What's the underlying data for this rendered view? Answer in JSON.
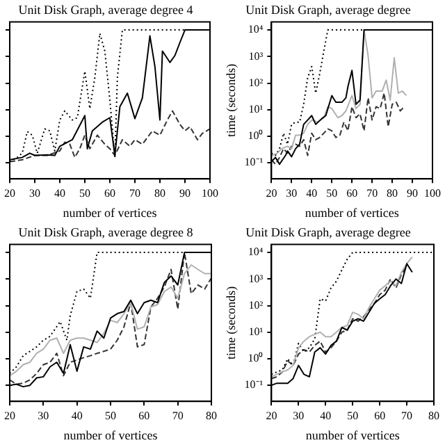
{
  "chart_data": [
    {
      "type": "line",
      "title": "Unit Disk Graph, average degree 4",
      "xlabel": "number of vertices",
      "xlim": [
        20,
        100
      ],
      "xticks": [
        20,
        30,
        40,
        50,
        60,
        70,
        80,
        90,
        100
      ],
      "ylim": [
        0.025,
        20000
      ],
      "yticks": [
        {
          "value": 0.1,
          "label": null
        },
        {
          "value": 1,
          "label": null
        },
        {
          "value": 10,
          "label": null
        },
        {
          "value": 100,
          "label": null
        },
        {
          "value": 1000,
          "label": null
        },
        {
          "value": 10000,
          "label": null
        }
      ],
      "log": "y",
      "tick_labels": "x",
      "grid": false,
      "legend": false,
      "marker": "none",
      "series": [
        {
          "color": "#000000",
          "line_style": "solid",
          "x": [
            20,
            25,
            28,
            30,
            35,
            38,
            40,
            45,
            50,
            51,
            53,
            57,
            60,
            62,
            64,
            67,
            70,
            73,
            76,
            78,
            80,
            81,
            84,
            86,
            88,
            90,
            100
          ],
          "values": [
            0.13,
            0.16,
            0.23,
            0.19,
            0.2,
            0.19,
            0.42,
            0.74,
            6,
            0.34,
            1.6,
            3.4,
            5,
            0.19,
            13,
            42,
            4.6,
            28,
            6000,
            420,
            4.1,
            1600,
            600,
            1100,
            3400,
            10000,
            10000
          ]
        },
        {
          "color": "#000000",
          "line_style": "dotted",
          "x": [
            20,
            23,
            25,
            27,
            29,
            31,
            34,
            36,
            38,
            40,
            42,
            45,
            47,
            50,
            52,
            54,
            56,
            58,
            60,
            62,
            63,
            65,
            100
          ],
          "values": [
            0.11,
            0.16,
            0.23,
            1.5,
            1.1,
            0.23,
            1.9,
            1.6,
            0.28,
            4.1,
            9,
            4.1,
            5,
            280,
            11,
            160,
            7400,
            1600,
            23,
            0.16,
            160,
            10000,
            10000
          ]
        },
        {
          "color": "#333333",
          "line_style": "dashed",
          "x": [
            20,
            25,
            30,
            35,
            40,
            42,
            44,
            46,
            48,
            50,
            52,
            55,
            58,
            60,
            62,
            65,
            68,
            70,
            73,
            75,
            77,
            80,
            83,
            85,
            88,
            90,
            92,
            95,
            97,
            100
          ],
          "values": [
            0.11,
            0.13,
            0.19,
            0.19,
            0.28,
            0.6,
            0.5,
            0.16,
            0.34,
            1.1,
            0.34,
            1.1,
            0.5,
            0.34,
            0.19,
            0.74,
            0.42,
            0.74,
            0.5,
            0.9,
            1.6,
            1.1,
            4.1,
            9,
            2.8,
            1.6,
            2.3,
            0.74,
            1.3,
            1.9
          ]
        }
      ]
    },
    {
      "type": "line",
      "title": "Unit Disk Graph, average degree",
      "xlabel": "number of vertices",
      "ylabel": "time (seconds)",
      "xlim": [
        20,
        100
      ],
      "xticks": [
        20,
        30,
        40,
        50,
        60,
        70,
        80,
        90,
        100
      ],
      "ylim": [
        0.025,
        20000
      ],
      "yticks": [
        {
          "value": 0.1,
          "label": "10⁻¹"
        },
        {
          "value": 1,
          "label": "10⁰"
        },
        {
          "value": 10,
          "label": "10¹"
        },
        {
          "value": 100,
          "label": "10²"
        },
        {
          "value": 1000,
          "label": "10³"
        },
        {
          "value": 10000,
          "label": "10⁴"
        }
      ],
      "log": "y",
      "grid": false,
      "legend": false,
      "marker": "none",
      "series": [
        {
          "color": "#000000",
          "line_style": "solid",
          "x": [
            20,
            22,
            24,
            27,
            28,
            30,
            32,
            34,
            36,
            38,
            40,
            42,
            45,
            47,
            50,
            52,
            55,
            57,
            58,
            60,
            62,
            64,
            66,
            100
          ],
          "values": [
            0.11,
            0.16,
            0.089,
            0.19,
            0.28,
            0.17,
            0.34,
            0.5,
            2.8,
            4.1,
            6,
            2.8,
            4.6,
            6,
            34,
            19,
            19,
            28,
            74,
            300,
            16,
            23,
            10000,
            10000
          ]
        },
        {
          "color": "#b0b0b0",
          "line_style": "solid",
          "x": [
            20,
            23,
            25,
            28,
            30,
            32,
            34,
            36,
            38,
            40,
            43,
            46,
            48,
            50,
            53,
            55,
            57,
            60,
            62,
            64,
            66,
            68,
            70,
            72,
            75,
            77,
            79,
            81,
            83,
            85,
            87
          ],
          "values": [
            0.19,
            0.23,
            0.34,
            0.42,
            0.34,
            1.1,
            1.1,
            1.3,
            2.8,
            4.1,
            3.4,
            5,
            13,
            11,
            5,
            6,
            9,
            34,
            11,
            16,
            10000,
            1100,
            28,
            50,
            50,
            130,
            23,
            900,
            42,
            50,
            34
          ]
        },
        {
          "color": "#000000",
          "line_style": "dotted",
          "x": [
            20,
            22,
            24,
            26,
            28,
            30,
            32,
            34,
            36,
            38,
            40,
            42,
            44,
            46,
            48,
            100
          ],
          "values": [
            0.23,
            0.19,
            0.34,
            1.3,
            0.5,
            2.8,
            3.4,
            3.4,
            16,
            160,
            420,
            42,
            230,
            1600,
            10000,
            10000
          ]
        },
        {
          "color": "#333333",
          "line_style": "dashed",
          "x": [
            20,
            22,
            24,
            26,
            28,
            30,
            32,
            34,
            36,
            38,
            40,
            42,
            44,
            46,
            48,
            50,
            52,
            54,
            56,
            58,
            60,
            62,
            64,
            66,
            68,
            70,
            72,
            74,
            76,
            78,
            80,
            82,
            84,
            86
          ],
          "values": [
            0.13,
            0.089,
            0.16,
            0.34,
            0.23,
            0.42,
            0.5,
            0.42,
            0.74,
            0.19,
            1.3,
            0.74,
            0.9,
            1.3,
            1.9,
            1.6,
            0.9,
            1.1,
            3.4,
            1.6,
            13,
            5,
            7,
            1.6,
            28,
            4.1,
            13,
            11,
            42,
            2.3,
            16,
            19,
            9,
            13
          ]
        }
      ]
    },
    {
      "type": "line",
      "title": "Unit Disk Graph, average degree 8",
      "xlabel": "number of vertices",
      "xlim": [
        20,
        80
      ],
      "xticks": [
        20,
        30,
        40,
        50,
        60,
        70,
        80
      ],
      "ylim": [
        0.025,
        20000
      ],
      "yticks": [
        {
          "value": 0.1,
          "label": null
        },
        {
          "value": 1,
          "label": null
        },
        {
          "value": 10,
          "label": null
        },
        {
          "value": 100,
          "label": null
        },
        {
          "value": 1000,
          "label": null
        },
        {
          "value": 10000,
          "label": null
        }
      ],
      "log": "y",
      "tick_labels": "x",
      "grid": false,
      "legend": false,
      "marker": "none",
      "series": [
        {
          "color": "#000000",
          "line_style": "solid",
          "x": [
            20,
            22,
            24,
            26,
            28,
            30,
            32,
            34,
            36,
            38,
            40,
            42,
            44,
            46,
            48,
            50,
            52,
            54,
            56,
            58,
            60,
            62,
            64,
            66,
            68,
            70,
            72,
            80
          ],
          "values": [
            0.1,
            0.11,
            0.089,
            0.1,
            0.19,
            0.21,
            0.5,
            0.74,
            0.28,
            3.4,
            0.34,
            2.8,
            2.3,
            11,
            6,
            34,
            50,
            60,
            160,
            50,
            130,
            160,
            130,
            740,
            1300,
            600,
            10000,
            10000
          ]
        },
        {
          "color": "#b0b0b0",
          "line_style": "solid",
          "x": [
            20,
            22,
            24,
            26,
            28,
            30,
            32,
            34,
            36,
            38,
            40,
            42,
            44,
            46,
            48,
            50,
            52,
            54,
            56,
            58,
            60,
            62,
            64,
            66,
            68,
            70,
            72,
            74,
            76,
            78,
            80
          ],
          "values": [
            0.23,
            0.34,
            0.6,
            0.74,
            1.6,
            2.3,
            5,
            6,
            1.6,
            5,
            6,
            6,
            5,
            4.1,
            9,
            28,
            23,
            50,
            130,
            13,
            16,
            89,
            110,
            340,
            500,
            190,
            1600,
            3400,
            2300,
            1600,
            1600
          ]
        },
        {
          "color": "#000000",
          "line_style": "dotted",
          "x": [
            20,
            22,
            24,
            26,
            28,
            30,
            32,
            35,
            37,
            38,
            40,
            42,
            44,
            46,
            80
          ],
          "values": [
            0.28,
            0.5,
            1.3,
            1.9,
            2.8,
            5,
            7,
            25,
            5,
            42,
            340,
            420,
            190,
            10000,
            10000
          ]
        },
        {
          "color": "#333333",
          "line_style": "dashed",
          "x": [
            20,
            22,
            24,
            26,
            28,
            30,
            32,
            34,
            36,
            38,
            40,
            42,
            44,
            46,
            48,
            50,
            52,
            54,
            56,
            58,
            60,
            62,
            64,
            66,
            68,
            70,
            72,
            74,
            76,
            78,
            80
          ],
          "values": [
            0.16,
            0.11,
            0.12,
            0.16,
            0.28,
            0.6,
            0.74,
            1.6,
            0.23,
            0.74,
            0.9,
            1.1,
            1.3,
            1.6,
            1.9,
            2.3,
            5,
            16,
            130,
            2.8,
            3.4,
            89,
            190,
            500,
            2300,
            74,
            10000,
            280,
            600,
            420,
            1100
          ]
        }
      ]
    },
    {
      "type": "line",
      "title": "Unit Disk Graph, average degree",
      "xlabel": "number of vertices",
      "ylabel": "time (seconds)",
      "xlim": [
        20,
        80
      ],
      "xticks": [
        20,
        30,
        40,
        50,
        60,
        70,
        80
      ],
      "ylim": [
        0.025,
        20000
      ],
      "yticks": [
        {
          "value": 0.1,
          "label": "10⁻¹"
        },
        {
          "value": 1,
          "label": "10⁰"
        },
        {
          "value": 10,
          "label": "10¹"
        },
        {
          "value": 100,
          "label": "10²"
        },
        {
          "value": 1000,
          "label": "10³"
        },
        {
          "value": 10000,
          "label": "10⁴"
        }
      ],
      "log": "y",
      "grid": false,
      "legend": false,
      "marker": "none",
      "series": [
        {
          "color": "#000000",
          "line_style": "solid",
          "x": [
            20,
            22,
            24,
            26,
            28,
            30,
            32,
            34,
            36,
            38,
            40,
            42,
            44,
            46,
            48,
            50,
            52,
            54,
            56,
            58,
            60,
            62,
            64,
            66,
            68,
            70,
            72
          ],
          "values": [
            0.1,
            0.12,
            0.12,
            0.12,
            0.18,
            0.56,
            0.26,
            0.21,
            1.8,
            2.6,
            1.5,
            3.2,
            4.6,
            15,
            12,
            26,
            32,
            26,
            56,
            120,
            180,
            260,
            560,
            1000,
            680,
            3800,
            1800
          ]
        },
        {
          "color": "#b0b0b0",
          "line_style": "solid",
          "x": [
            20,
            22,
            24,
            26,
            28,
            30,
            32,
            34,
            36,
            38,
            40,
            42,
            44,
            46,
            48,
            50,
            52,
            54,
            56,
            58,
            60,
            62,
            64,
            66,
            68,
            70,
            72
          ],
          "values": [
            0.21,
            0.26,
            0.32,
            0.38,
            0.56,
            2.6,
            4.6,
            6.8,
            8.3,
            10,
            6.8,
            6.8,
            10,
            15,
            18,
            56,
            47,
            32,
            83,
            180,
            380,
            560,
            830,
            560,
            1800,
            3800,
            6800
          ]
        },
        {
          "color": "#000000",
          "line_style": "dotted",
          "x": [
            20,
            22,
            24,
            26,
            28,
            30,
            32,
            34,
            36,
            38,
            40,
            42,
            44,
            46,
            48,
            50,
            80
          ],
          "values": [
            0.26,
            0.32,
            0.38,
            1,
            0.56,
            3.8,
            1.8,
            2.6,
            5.6,
            180,
            150,
            460,
            830,
            2200,
            5600,
            10000,
            10000
          ]
        },
        {
          "color": "#333333",
          "line_style": "dashed",
          "x": [
            20,
            22,
            24,
            26,
            28,
            30,
            32,
            34,
            36,
            38,
            40,
            42,
            44,
            46,
            48,
            50,
            52,
            54,
            56,
            58,
            60,
            62,
            64,
            66,
            68,
            70
          ],
          "values": [
            0.18,
            0.21,
            0.32,
            0.83,
            0.56,
            1.5,
            2.2,
            1.8,
            3.2,
            4.6,
            1.8,
            2.6,
            4.6,
            10,
            12,
            32,
            26,
            38,
            68,
            120,
            260,
            380,
            1000,
            460,
            1500,
            3200
          ]
        }
      ]
    }
  ]
}
